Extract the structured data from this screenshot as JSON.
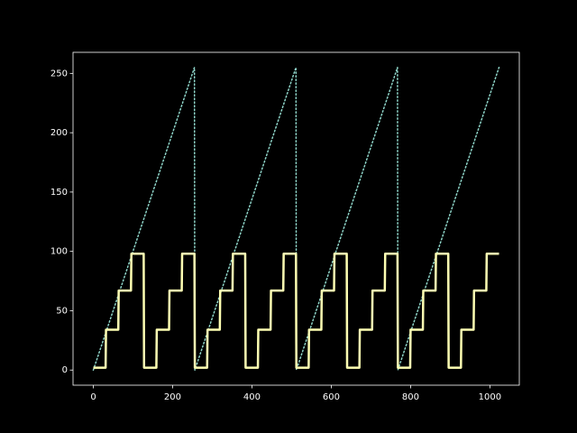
{
  "chart_data": {
    "type": "line",
    "xlim": [
      -51.15,
      1074.15
    ],
    "ylim": [
      -12.75,
      267.75
    ],
    "xticks": [
      0,
      200,
      400,
      600,
      800,
      1000
    ],
    "yticks": [
      0,
      50,
      100,
      150,
      200,
      250
    ],
    "series": [
      {
        "color": "#8dd3c7",
        "linestyle": "dotted",
        "x": [
          0,
          255,
          256,
          511,
          512,
          767,
          768,
          1023
        ],
        "values": [
          0,
          255,
          0,
          255,
          0,
          255,
          0,
          255
        ]
      },
      {
        "color": "#feffb3",
        "linestyle": "solid",
        "x": [
          0,
          31,
          32,
          63,
          64,
          95,
          96,
          127,
          128,
          159,
          160,
          191,
          192,
          223,
          224,
          255,
          256,
          287,
          288,
          319,
          320,
          351,
          352,
          383,
          384,
          415,
          416,
          447,
          448,
          479,
          480,
          511,
          512,
          543,
          544,
          575,
          576,
          607,
          608,
          639,
          640,
          671,
          672,
          703,
          704,
          735,
          736,
          767,
          768,
          799,
          800,
          831,
          832,
          863,
          864,
          895,
          896,
          927,
          928,
          959,
          960,
          991,
          992,
          1023
        ],
        "values": [
          2,
          2,
          34,
          34,
          67,
          67,
          98,
          98,
          2,
          2,
          34,
          34,
          67,
          67,
          98,
          98,
          2,
          2,
          34,
          34,
          67,
          67,
          98,
          98,
          2,
          2,
          34,
          34,
          67,
          67,
          98,
          98,
          2,
          2,
          34,
          34,
          67,
          67,
          98,
          98,
          2,
          2,
          34,
          34,
          67,
          67,
          98,
          98,
          2,
          2,
          34,
          34,
          67,
          67,
          98,
          98,
          2,
          2,
          34,
          34,
          67,
          67,
          98,
          98
        ]
      }
    ]
  }
}
